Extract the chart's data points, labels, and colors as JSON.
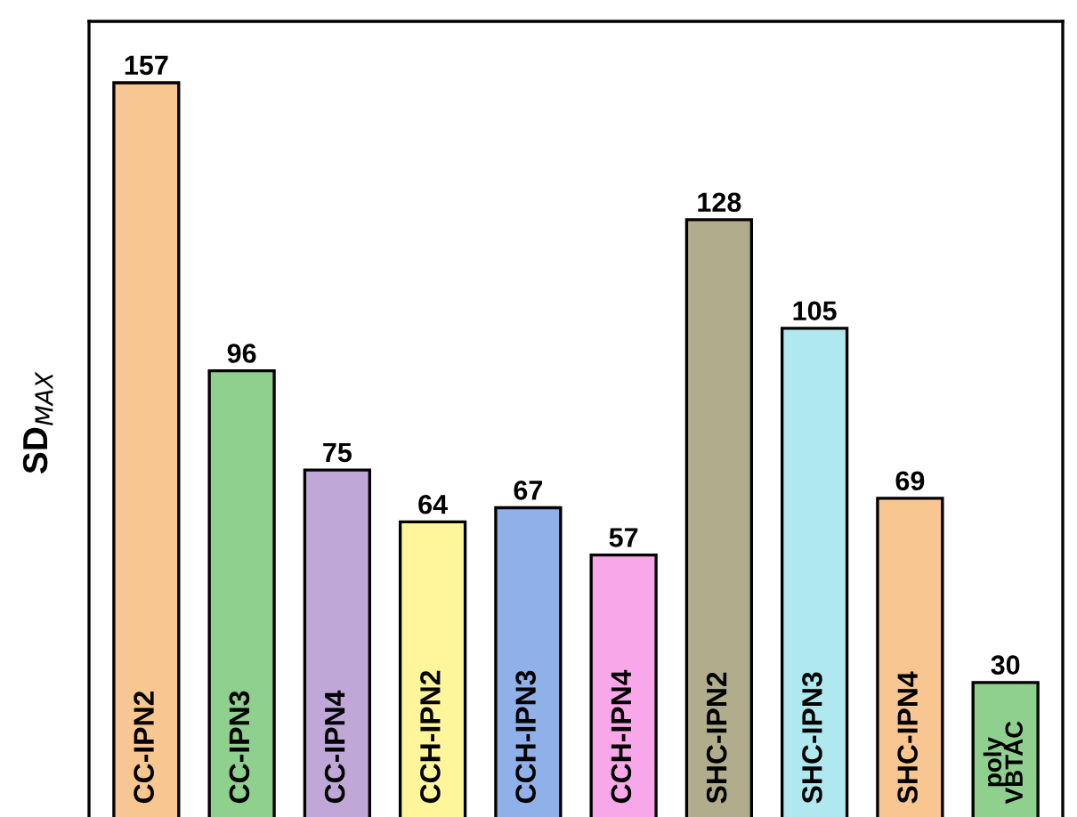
{
  "chart_data": {
    "type": "bar",
    "ylabel": "SD$_{MAX}$",
    "categories": [
      "CC-IPN2",
      "CC-IPN3",
      "CC-IPN4",
      "CCH-IPN2",
      "CCH-IPN3",
      "CCH-IPN4",
      "SHC-IPN2",
      "SHC-IPN3",
      "SHC-IPN4",
      "poly\nVBTAC"
    ],
    "values": [
      157,
      96,
      75,
      64,
      67,
      57,
      128,
      105,
      69,
      30
    ],
    "colors": [
      "#f8c690",
      "#8fd08f",
      "#bfa8d8",
      "#fff59a",
      "#8fb0e8",
      "#f8a8e8",
      "#b0ac8c",
      "#b0e8f0",
      "#f8c690",
      "#8fd08f"
    ],
    "ylim": [
      0,
      170
    ],
    "data_labels": true
  }
}
